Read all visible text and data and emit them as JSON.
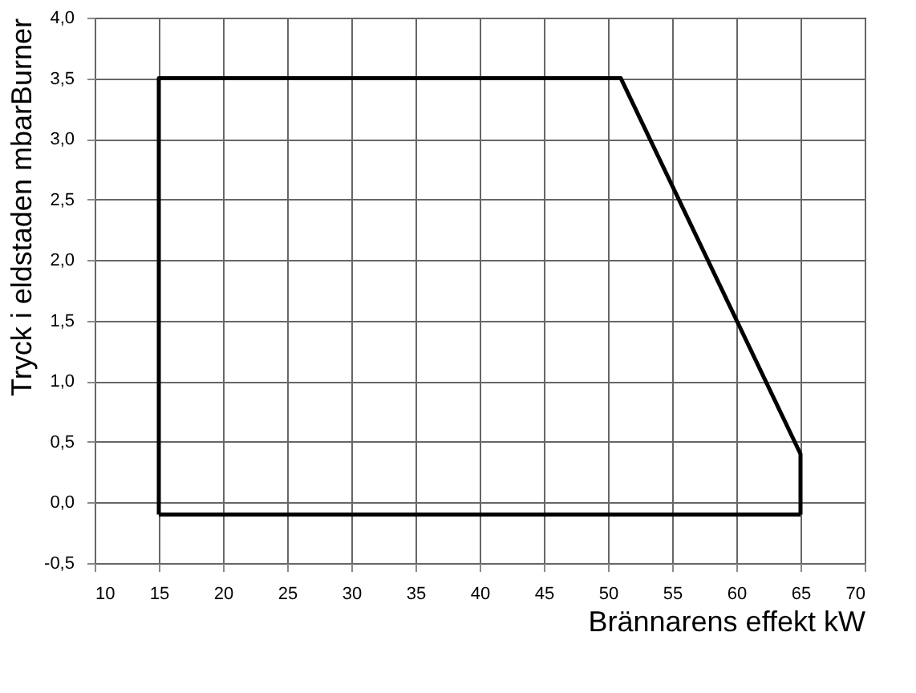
{
  "chart_data": {
    "type": "line",
    "xlabel": "Brännarens effekt kW",
    "ylabel": "Tryck i eldstaden mbarBurner",
    "series": [
      {
        "color": "#000000",
        "x": [
          15,
          15,
          51,
          65,
          65
        ],
        "values": [
          -0.1,
          3.5,
          3.5,
          0.4,
          -0.1
        ]
      },
      {
        "color": "#000000",
        "x": [
          15,
          65
        ],
        "values": [
          -0.1,
          -0.1
        ]
      }
    ],
    "xlim": [
      10,
      70
    ],
    "xticks": [
      10,
      15,
      20,
      25,
      30,
      35,
      40,
      45,
      50,
      55,
      60,
      65,
      70
    ],
    "ylim": [
      -0.5,
      4.0
    ],
    "yticks": [
      {
        "value": -0.5,
        "label": "-0,5"
      },
      {
        "value": 0,
        "label": "0,0"
      },
      {
        "value": 0.5,
        "label": "0,5"
      },
      {
        "value": 1,
        "label": "1,0"
      },
      {
        "value": 1.5,
        "label": "1,5"
      },
      {
        "value": 2,
        "label": "2,0"
      },
      {
        "value": 2.5,
        "label": "2,5"
      },
      {
        "value": 3,
        "label": "3,0"
      },
      {
        "value": 3.5,
        "label": "3,5"
      },
      {
        "value": 4,
        "label": "4,0"
      }
    ],
    "grid": true,
    "marker": "none",
    "line_style": "solid"
  }
}
